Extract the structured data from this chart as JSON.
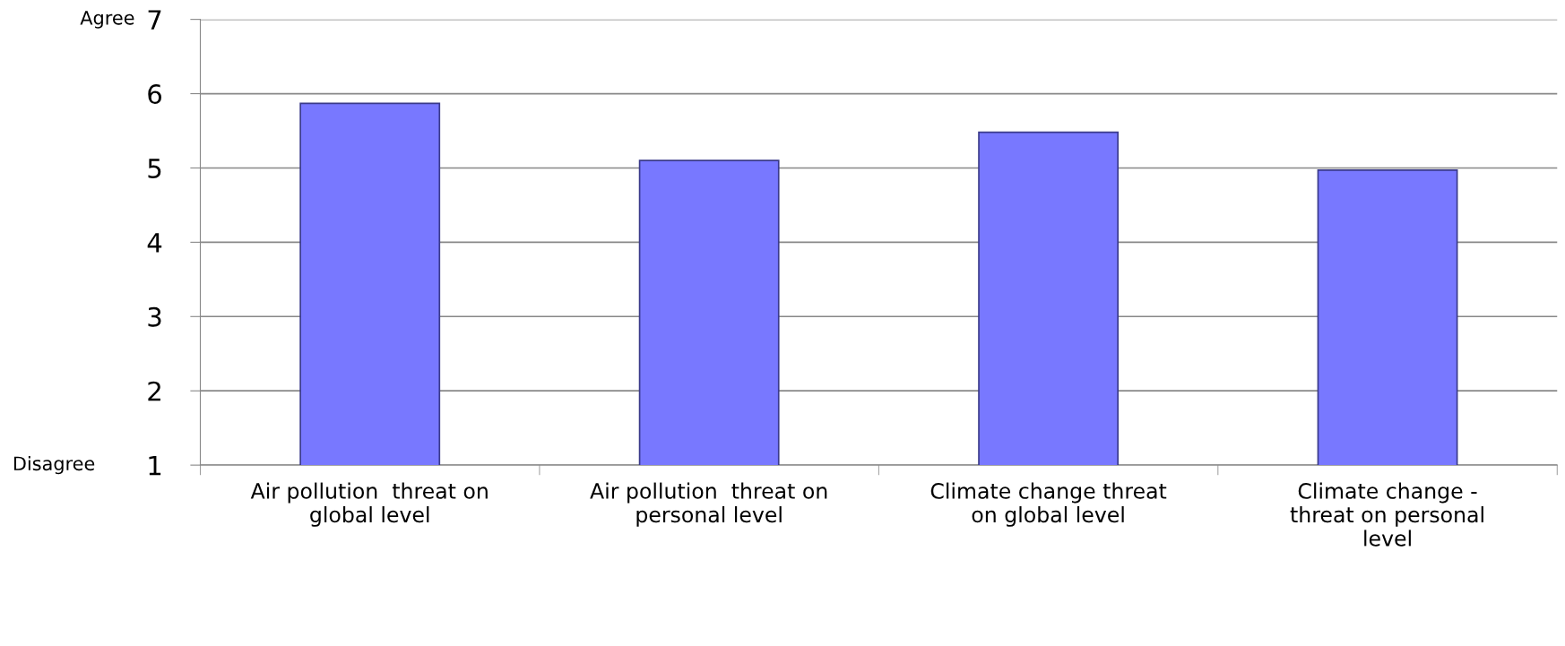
{
  "chart_data": {
    "type": "bar",
    "categories": [
      "Air pollution  threat on\nglobal level",
      "Air pollution  threat on\npersonal level",
      "Climate change threat\non global level",
      "Climate change -\nthreat on personal\nlevel"
    ],
    "values": [
      5.87,
      5.1,
      5.48,
      4.97
    ],
    "color": "#7878ff",
    "ylim": [
      1,
      7
    ],
    "yticks": [
      1,
      2,
      3,
      4,
      5,
      6,
      7
    ],
    "grid": "y",
    "legend": false,
    "annotations": [
      "Agree",
      "Disagree"
    ]
  }
}
